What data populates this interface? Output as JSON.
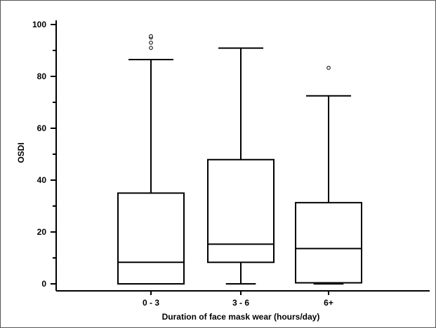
{
  "chart_data": {
    "type": "box",
    "xlabel": "Duration of face mask wear (hours/day)",
    "ylabel": "OSDI",
    "ylim": [
      0,
      100
    ],
    "yticks": [
      0,
      20,
      40,
      60,
      80,
      100
    ],
    "grid": false,
    "categories": [
      "0 - 3",
      "3 - 6",
      "6+"
    ],
    "boxes": [
      {
        "category": "0 - 3",
        "whisker_low": 0,
        "q1": 0,
        "median": 8.3,
        "q3": 35,
        "whisker_high": 86.5,
        "outliers": [
          91,
          93,
          95,
          95.5
        ]
      },
      {
        "category": "3 - 6",
        "whisker_low": 0,
        "q1": 8.3,
        "median": 15.3,
        "q3": 47.9,
        "whisker_high": 90.9,
        "outliers": []
      },
      {
        "category": "6+",
        "whisker_low": 0,
        "q1": 0.4,
        "median": 13.6,
        "q3": 31.3,
        "whisker_high": 72.5,
        "outliers": [
          83.3
        ]
      }
    ]
  }
}
